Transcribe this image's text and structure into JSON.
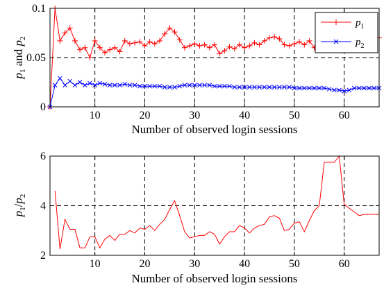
{
  "chart_data": [
    {
      "type": "line",
      "xlabel": "Number of observed login sessions",
      "ylabel": "p1 and p2",
      "xlim": [
        1,
        67
      ],
      "ylim": [
        0,
        0.1
      ],
      "xticks": [
        10,
        20,
        30,
        40,
        50,
        60
      ],
      "yticks": [
        0,
        0.05,
        0.1
      ],
      "ytick_labels": [
        "0",
        "0.05",
        "0.1"
      ],
      "grid": true,
      "grid_style": "dashed",
      "legend_position": "top-right",
      "x": [
        1,
        2,
        3,
        4,
        5,
        6,
        7,
        8,
        9,
        10,
        11,
        12,
        13,
        14,
        15,
        16,
        17,
        18,
        19,
        20,
        21,
        22,
        23,
        24,
        25,
        26,
        27,
        28,
        29,
        30,
        31,
        32,
        33,
        34,
        35,
        36,
        37,
        38,
        39,
        40,
        41,
        42,
        43,
        44,
        45,
        46,
        47,
        48,
        49,
        50,
        51,
        52,
        53,
        54,
        55,
        56,
        57,
        58,
        59,
        60,
        61,
        62,
        63,
        64,
        65,
        66,
        67
      ],
      "series": [
        {
          "name": "p1",
          "color": "#ff0000",
          "marker": "plus",
          "values": [
            0,
            0.1,
            0.067,
            0.075,
            0.08,
            0.067,
            0.058,
            0.06,
            0.05,
            0.067,
            0.06,
            0.055,
            0.058,
            0.06,
            0.056,
            0.067,
            0.064,
            0.065,
            0.066,
            0.062,
            0.066,
            0.064,
            0.067,
            0.074,
            0.08,
            0.076,
            0.068,
            0.06,
            0.062,
            0.064,
            0.062,
            0.063,
            0.06,
            0.063,
            0.054,
            0.057,
            0.061,
            0.059,
            0.063,
            0.06,
            0.062,
            0.065,
            0.063,
            0.067,
            0.07,
            0.071,
            0.069,
            0.063,
            0.062,
            0.064,
            0.066,
            0.063,
            0.067,
            0.06,
            0.058,
            0.062,
            0.064,
            0.067,
            0.067,
            0.069,
            0.07,
            0.07,
            0.071,
            0.071,
            0.071,
            0.071,
            0.07
          ]
        },
        {
          "name": "p2",
          "color": "#0000ff",
          "marker": "x",
          "values": [
            0,
            0.022,
            0.029,
            0.022,
            0.026,
            0.022,
            0.025,
            0.022,
            0.024,
            0.022,
            0.024,
            0.023,
            0.022,
            0.022,
            0.022,
            0.023,
            0.022,
            0.022,
            0.021,
            0.021,
            0.021,
            0.021,
            0.021,
            0.02,
            0.02,
            0.02,
            0.021,
            0.022,
            0.022,
            0.022,
            0.022,
            0.022,
            0.022,
            0.021,
            0.021,
            0.021,
            0.021,
            0.02,
            0.02,
            0.02,
            0.02,
            0.02,
            0.02,
            0.02,
            0.02,
            0.02,
            0.02,
            0.02,
            0.02,
            0.019,
            0.019,
            0.019,
            0.019,
            0.019,
            0.019,
            0.019,
            0.018,
            0.017,
            0.017,
            0.016,
            0.017,
            0.019,
            0.019,
            0.019,
            0.019,
            0.019,
            0.019
          ]
        }
      ]
    },
    {
      "type": "line",
      "xlabel": "Number of observed login sessions",
      "ylabel": "p1/p2",
      "xlim": [
        1,
        67
      ],
      "ylim": [
        2,
        6
      ],
      "xticks": [
        10,
        20,
        30,
        40,
        50,
        60
      ],
      "yticks": [
        2,
        4,
        6
      ],
      "ytick_labels": [
        "2",
        "4",
        "6"
      ],
      "grid": true,
      "grid_style": "dashed",
      "x": [
        2,
        3,
        4,
        5,
        6,
        7,
        8,
        9,
        10,
        11,
        12,
        13,
        14,
        15,
        16,
        17,
        18,
        19,
        20,
        21,
        22,
        23,
        24,
        25,
        26,
        27,
        28,
        29,
        30,
        31,
        32,
        33,
        34,
        35,
        36,
        37,
        38,
        39,
        40,
        41,
        42,
        43,
        44,
        45,
        46,
        47,
        48,
        49,
        50,
        51,
        52,
        53,
        54,
        55,
        56,
        57,
        58,
        59,
        60,
        61,
        62,
        63,
        64,
        65,
        66,
        67
      ],
      "series": [
        {
          "color": "#ff0000",
          "values": [
            4.6,
            2.25,
            3.45,
            3.05,
            3.05,
            2.3,
            2.3,
            2.75,
            2.75,
            2.3,
            2.65,
            2.8,
            2.6,
            2.85,
            2.85,
            3.0,
            2.9,
            3.1,
            3.05,
            3.2,
            3.0,
            3.25,
            3.45,
            3.85,
            4.2,
            3.6,
            2.95,
            2.7,
            2.75,
            2.8,
            2.8,
            2.95,
            2.85,
            2.45,
            2.75,
            2.95,
            2.95,
            3.2,
            3.1,
            2.9,
            3.1,
            3.2,
            3.25,
            3.55,
            3.6,
            3.5,
            3.0,
            3.05,
            3.3,
            3.35,
            2.95,
            3.4,
            3.8,
            4.0,
            5.75,
            5.75,
            5.75,
            6.0,
            4.05,
            3.9,
            3.75,
            3.6,
            3.65,
            3.65,
            3.65,
            3.65
          ]
        }
      ]
    }
  ]
}
